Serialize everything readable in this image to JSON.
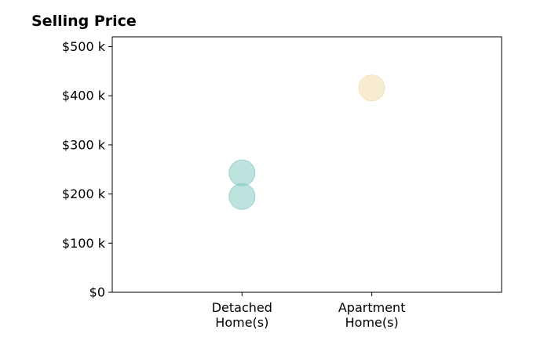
{
  "chart_data": {
    "type": "scatter",
    "title": "Selling Price",
    "xlabel": "",
    "ylabel": "",
    "categories": [
      [
        "Detached",
        "Home(s)"
      ],
      [
        "Apartment",
        "Home(s)"
      ]
    ],
    "xlim": [
      -1,
      2
    ],
    "ylim": [
      0,
      520000
    ],
    "yticks": [
      0,
      100000,
      200000,
      300000,
      400000,
      500000
    ],
    "ytick_labels": [
      "$0",
      "$100 k",
      "$200 k",
      "$300 k",
      "$400 k",
      "$500 k"
    ],
    "grid": false,
    "legend": null,
    "points": [
      {
        "category": 0,
        "value": 243000,
        "color": "#7ec8be"
      },
      {
        "category": 0,
        "value": 195000,
        "color": "#7ec8be"
      },
      {
        "category": 1,
        "value": 416000,
        "color": "#f2dca8"
      }
    ]
  }
}
